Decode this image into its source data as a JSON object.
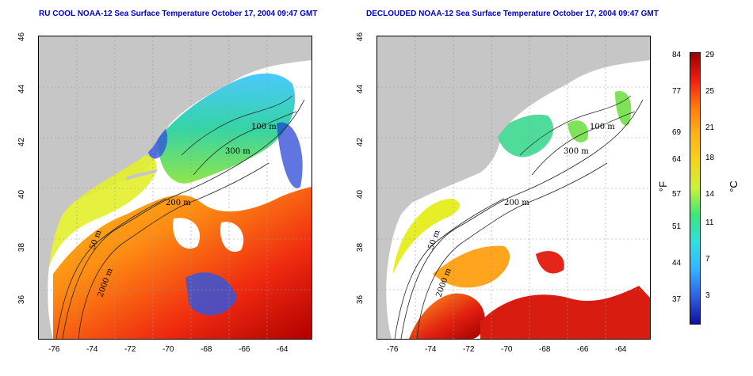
{
  "titles": {
    "left": "RU COOL NOAA-12 Sea Surface Temperature October 17, 2004 09:47 GMT",
    "right": "DECLOUDED NOAA-12 Sea Surface Temperature October 17, 2004 09:47 GMT"
  },
  "x_ticks": [
    "-76",
    "-74",
    "-72",
    "-70",
    "-68",
    "-66",
    "-64"
  ],
  "y_ticks": [
    "46",
    "44",
    "42",
    "40",
    "38",
    "36"
  ],
  "contour_labels": {
    "c100": "100 m",
    "c300": "300 m",
    "c200": "200 m",
    "c50": "50 m",
    "c2000": "2000 m"
  },
  "colorbar": {
    "f_ticks": [
      "84",
      "77",
      "69",
      "64",
      "57",
      "51",
      "44",
      "37"
    ],
    "c_ticks": [
      "29",
      "25",
      "21",
      "18",
      "14",
      "11",
      "7",
      "3"
    ],
    "f_unit": "°F",
    "c_unit": "°C"
  },
  "colors": {
    "land": "#c6c6c6",
    "title": "#0000cc"
  }
}
